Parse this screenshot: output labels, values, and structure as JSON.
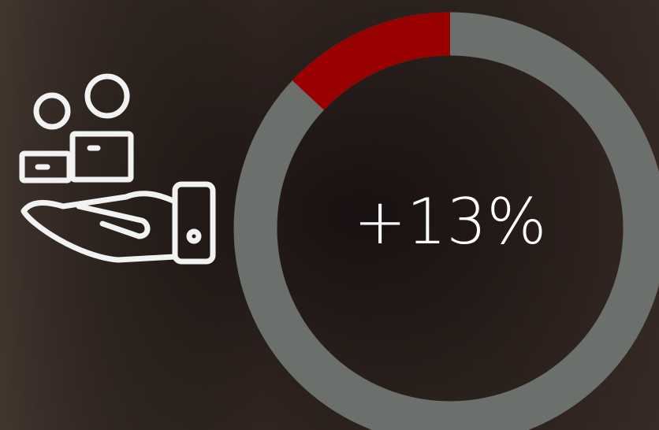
{
  "chart_data": {
    "type": "donut",
    "values": [
      13
    ],
    "value_labels": [
      "+13%"
    ],
    "ylim": [
      0,
      100
    ],
    "color": "#990000",
    "track_color": "#6b706d",
    "direction": "counterclockwise"
  }
}
